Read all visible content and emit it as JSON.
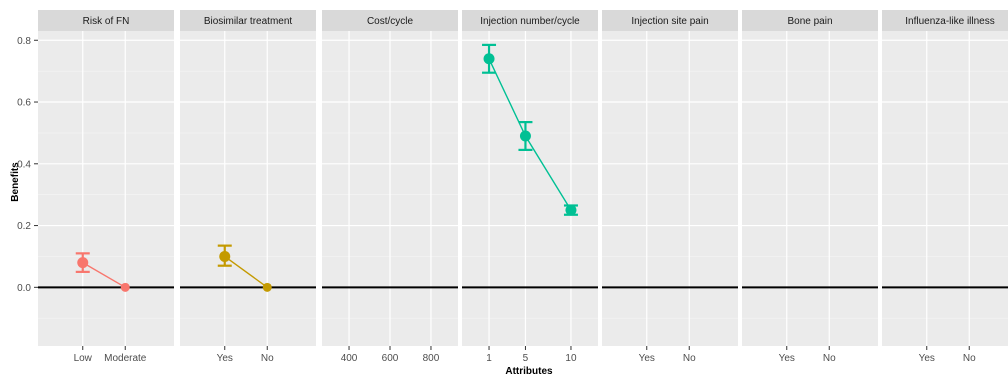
{
  "chart_data": {
    "type": "line",
    "ylabel": "Benefits",
    "xlabel": "Attributes",
    "ylim": [
      -0.19,
      0.83
    ],
    "y_ticks": [
      "0.0",
      "0.2",
      "0.4",
      "0.6",
      "0.8"
    ],
    "grid": true,
    "legend": "none",
    "zero_line": true,
    "panels": [
      {
        "title": "Risk of FN",
        "color": "#F8766D",
        "categories": [
          "Low",
          "Moderate"
        ],
        "values": [
          0.08,
          0.0
        ],
        "error_low": [
          0.05,
          0.0
        ],
        "error_high": [
          0.11,
          0.0
        ]
      },
      {
        "title": "Biosimilar treatment",
        "color": "#C49A00",
        "categories": [
          "Yes",
          "No"
        ],
        "values": [
          0.1,
          0.0
        ],
        "error_low": [
          0.07,
          0.0
        ],
        "error_high": [
          0.135,
          0.0
        ]
      },
      {
        "title": "Cost/cycle",
        "color": "#53B400",
        "categories": [
          "400",
          "600",
          "800"
        ],
        "values": [],
        "error_low": [],
        "error_high": []
      },
      {
        "title": "Injection number/cycle",
        "color": "#00C094",
        "categories": [
          "1",
          "5",
          "10"
        ],
        "values": [
          0.74,
          0.49,
          0.25
        ],
        "error_low": [
          0.695,
          0.445,
          0.235
        ],
        "error_high": [
          0.785,
          0.535,
          0.265
        ]
      },
      {
        "title": "Injection site pain",
        "color": "#00B6EB",
        "categories": [
          "Yes",
          "No"
        ],
        "values": [],
        "error_low": [],
        "error_high": []
      },
      {
        "title": "Bone pain",
        "color": "#A58AFF",
        "categories": [
          "Yes",
          "No"
        ],
        "values": [],
        "error_low": [],
        "error_high": []
      },
      {
        "title": "Influenza-like illness",
        "color": "#FB61D7",
        "categories": [
          "Yes",
          "No"
        ],
        "values": [],
        "error_low": [],
        "error_high": []
      }
    ]
  }
}
